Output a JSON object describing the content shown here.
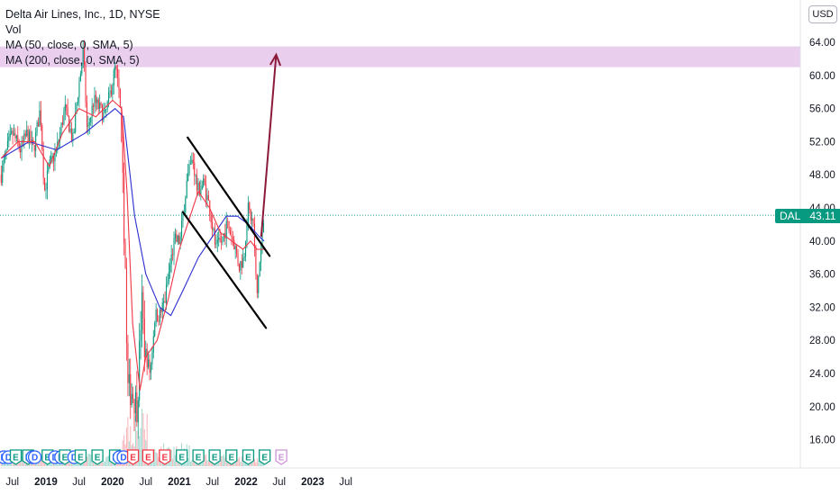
{
  "legend": {
    "title": "Delta Air Lines, Inc., 1D, NYSE",
    "vol": "Vol",
    "ma50": "MA (50, close, 0, SMA, 5)",
    "ma200": "MA (200, close, 0, SMA, 5)"
  },
  "currency": "USD",
  "last_price": {
    "ticker": "DAL",
    "value": "43.11"
  },
  "colors": {
    "up": "#089981",
    "down": "#f23645",
    "ma50": "#f23645",
    "ma200": "#2a2ed0",
    "zone": "#e1bee7",
    "arrow": "#8b1a3a",
    "channel": "#000000",
    "dividend": "#2962ff"
  },
  "chart_data": {
    "type": "candlestick",
    "title": "Delta Air Lines, Inc., 1D, NYSE",
    "ylim": [
      14,
      66
    ],
    "y_ticks": [
      "64.00",
      "60.00",
      "56.00",
      "52.00",
      "48.00",
      "44.00",
      "40.00",
      "36.00",
      "32.00",
      "28.00",
      "24.00",
      "20.00",
      "16.00"
    ],
    "x_ticks": [
      "Jul",
      "2019",
      "Jul",
      "2020",
      "Jul",
      "2021",
      "Jul",
      "2022",
      "Jul",
      "2023",
      "Jul"
    ],
    "x_ticks_bold": [
      "2019",
      "2020",
      "2021",
      "2022",
      "2023"
    ],
    "resistance_zone": [
      61,
      63.5
    ],
    "channel_upper": {
      "start": [
        "2021-02-15",
        52.5
      ],
      "end": [
        "2022-05-10",
        38.2
      ]
    },
    "channel_lower": {
      "start": [
        "2021-01-20",
        43.5
      ],
      "end": [
        "2022-04-20",
        29.5
      ]
    },
    "projection_arrow": {
      "start": [
        "2022-03-25",
        40.5
      ],
      "end": [
        "2022-06-15",
        62.5
      ]
    },
    "price_path": [
      [
        "2018-05-01",
        48
      ],
      [
        "2018-06-01",
        51
      ],
      [
        "2018-07-01",
        53
      ],
      [
        "2018-08-15",
        51
      ],
      [
        "2018-09-20",
        53
      ],
      [
        "2018-10-25",
        51
      ],
      [
        "2018-12-01",
        56
      ],
      [
        "2018-12-24",
        46
      ],
      [
        "2019-01-20",
        49
      ],
      [
        "2019-03-01",
        51
      ],
      [
        "2019-04-15",
        56
      ],
      [
        "2019-05-30",
        52
      ],
      [
        "2019-06-20",
        57
      ],
      [
        "2019-07-25",
        63
      ],
      [
        "2019-08-15",
        53
      ],
      [
        "2019-09-20",
        57
      ],
      [
        "2019-11-20",
        55
      ],
      [
        "2019-12-20",
        58
      ],
      [
        "2020-01-17",
        61
      ],
      [
        "2020-02-10",
        57
      ],
      [
        "2020-02-28",
        45
      ],
      [
        "2020-03-15",
        34
      ],
      [
        "2020-03-20",
        22
      ],
      [
        "2020-04-15",
        22
      ],
      [
        "2020-05-15",
        20
      ],
      [
        "2020-06-08",
        33
      ],
      [
        "2020-06-25",
        27
      ],
      [
        "2020-07-25",
        24
      ],
      [
        "2020-08-20",
        31
      ],
      [
        "2020-09-15",
        31
      ],
      [
        "2020-10-15",
        33
      ],
      [
        "2020-11-10",
        37
      ],
      [
        "2020-12-05",
        40
      ],
      [
        "2021-01-05",
        40
      ],
      [
        "2021-02-10",
        47
      ],
      [
        "2021-03-15",
        50
      ],
      [
        "2021-04-10",
        46
      ],
      [
        "2021-05-15",
        47
      ],
      [
        "2021-06-15",
        44
      ],
      [
        "2021-07-20",
        39
      ],
      [
        "2021-08-20",
        40
      ],
      [
        "2021-09-20",
        42
      ],
      [
        "2021-10-25",
        40
      ],
      [
        "2021-11-25",
        37
      ],
      [
        "2021-12-20",
        38
      ],
      [
        "2022-01-10",
        44
      ],
      [
        "2022-02-10",
        42
      ],
      [
        "2022-03-01",
        33
      ],
      [
        "2022-03-10",
        36
      ],
      [
        "2022-03-25",
        39
      ],
      [
        "2022-04-05",
        42
      ],
      [
        "2022-04-10",
        43.1
      ]
    ],
    "ma50_path": [
      [
        "2018-05-01",
        50
      ],
      [
        "2018-08-01",
        52
      ],
      [
        "2018-11-01",
        52
      ],
      [
        "2019-01-20",
        49
      ],
      [
        "2019-04-01",
        53
      ],
      [
        "2019-07-01",
        56
      ],
      [
        "2019-10-01",
        55
      ],
      [
        "2020-01-01",
        57
      ],
      [
        "2020-02-20",
        56
      ],
      [
        "2020-03-20",
        46
      ],
      [
        "2020-04-20",
        30
      ],
      [
        "2020-05-30",
        22
      ],
      [
        "2020-07-01",
        26
      ],
      [
        "2020-09-01",
        28
      ],
      [
        "2020-11-01",
        33
      ],
      [
        "2021-01-01",
        39
      ],
      [
        "2021-03-01",
        43
      ],
      [
        "2021-04-15",
        46
      ],
      [
        "2021-06-15",
        44
      ],
      [
        "2021-08-15",
        41
      ],
      [
        "2021-10-15",
        40
      ],
      [
        "2021-12-15",
        39
      ],
      [
        "2022-01-25",
        40
      ],
      [
        "2022-03-01",
        39
      ],
      [
        "2022-04-10",
        39
      ]
    ],
    "ma200_path": [
      [
        "2018-05-01",
        50
      ],
      [
        "2018-10-01",
        52
      ],
      [
        "2019-03-01",
        51
      ],
      [
        "2019-08-01",
        53
      ],
      [
        "2020-01-15",
        56
      ],
      [
        "2020-03-01",
        55
      ],
      [
        "2020-05-01",
        43
      ],
      [
        "2020-07-01",
        36
      ],
      [
        "2020-09-15",
        32
      ],
      [
        "2020-11-15",
        31
      ],
      [
        "2021-01-20",
        34
      ],
      [
        "2021-04-15",
        38
      ],
      [
        "2021-07-15",
        41
      ],
      [
        "2021-09-15",
        43
      ],
      [
        "2021-11-15",
        43
      ],
      [
        "2022-01-15",
        42
      ],
      [
        "2022-03-15",
        40.5
      ],
      [
        "2022-04-10",
        40
      ]
    ],
    "events": [
      {
        "date": "2018-05-15",
        "type": "D"
      },
      {
        "date": "2018-06-10",
        "type": "D"
      },
      {
        "date": "2018-07-20",
        "type": "E"
      },
      {
        "date": "2018-09-25",
        "type": "E"
      },
      {
        "date": "2018-10-20",
        "type": "D"
      },
      {
        "date": "2018-11-01",
        "type": "D"
      },
      {
        "date": "2019-01-10",
        "type": "E"
      },
      {
        "date": "2019-02-20",
        "type": "D"
      },
      {
        "date": "2019-03-25",
        "type": "D"
      },
      {
        "date": "2019-04-15",
        "type": "E"
      },
      {
        "date": "2019-06-05",
        "type": "D"
      },
      {
        "date": "2019-07-10",
        "type": "E"
      },
      {
        "date": "2019-10-10",
        "type": "E"
      },
      {
        "date": "2020-01-14",
        "type": "E"
      },
      {
        "date": "2020-02-08",
        "type": "D"
      },
      {
        "date": "2020-03-01",
        "type": "D"
      },
      {
        "date": "2020-04-22",
        "type": "E"
      },
      {
        "date": "2020-07-14",
        "type": "E"
      },
      {
        "date": "2020-10-13",
        "type": "E"
      },
      {
        "date": "2021-01-14",
        "type": "E"
      },
      {
        "date": "2021-04-15",
        "type": "E"
      },
      {
        "date": "2021-07-13",
        "type": "E"
      },
      {
        "date": "2021-10-13",
        "type": "E"
      },
      {
        "date": "2022-01-13",
        "type": "E"
      },
      {
        "date": "2022-04-13",
        "type": "E"
      },
      {
        "date": "2022-07-13",
        "type": "E-future"
      }
    ]
  }
}
